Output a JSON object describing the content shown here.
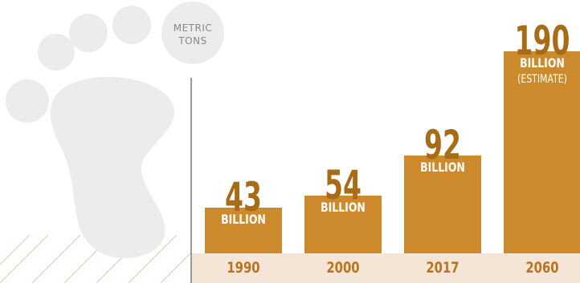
{
  "chart_data": {
    "type": "bar",
    "categories": [
      "1990",
      "2000",
      "2017",
      "2060"
    ],
    "values": [
      43,
      54,
      92,
      190
    ],
    "value_labels": [
      "43",
      "54",
      "92",
      "190"
    ],
    "unit_label": "BILLION",
    "annotations": [
      "",
      "",
      "",
      "(ESTIMATE)"
    ],
    "units": [
      "METRIC",
      "TONS"
    ],
    "ylim": [
      0,
      190
    ],
    "grid": false,
    "legend": "none",
    "colors": {
      "bar": "#cd8a2c",
      "value_text": "#a86b16",
      "year_text": "#b87420",
      "base_band": "#f5e5d6",
      "footprint": "#ececec",
      "hatch": "#e3c9ae"
    }
  },
  "icons": {
    "background": "footprint-icon"
  }
}
